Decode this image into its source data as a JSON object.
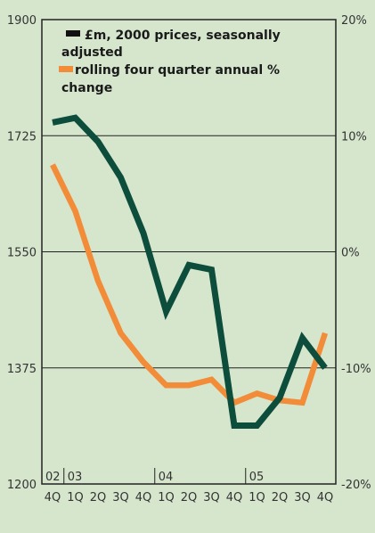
{
  "chart_data": {
    "type": "line",
    "categories": [
      "4Q",
      "1Q",
      "2Q",
      "3Q",
      "4Q",
      "1Q",
      "2Q",
      "3Q",
      "4Q",
      "1Q",
      "2Q",
      "3Q",
      "4Q"
    ],
    "years": [
      "02",
      "03",
      "04",
      "05"
    ],
    "series": [
      {
        "name": "£m, 2000 prices, seasonally adjusted",
        "axis": "left",
        "color": "#0d4d3c",
        "values": [
          1745,
          1752,
          1716,
          1662,
          1578,
          1460,
          1530,
          1523,
          1288,
          1288,
          1330,
          1420,
          1375
        ]
      },
      {
        "name": "rolling four quarter annual % change",
        "axis": "right",
        "color": "#f28c38",
        "values": [
          7.5,
          3.5,
          -2.5,
          -7.0,
          -9.5,
          -11.5,
          -11.5,
          -11.0,
          -13.0,
          -12.2,
          -12.8,
          -13.0,
          -7.0
        ]
      }
    ],
    "left_axis": {
      "ylim": [
        1200,
        1900
      ],
      "ticks": [
        "1900",
        "1725",
        "1550",
        "1375",
        "1200"
      ]
    },
    "right_axis": {
      "ylim": [
        -20,
        20
      ],
      "ticks": [
        "20%",
        "10%",
        "0%",
        "-10%",
        "-20%"
      ]
    },
    "grid": true,
    "legend_placement": "top-left"
  }
}
